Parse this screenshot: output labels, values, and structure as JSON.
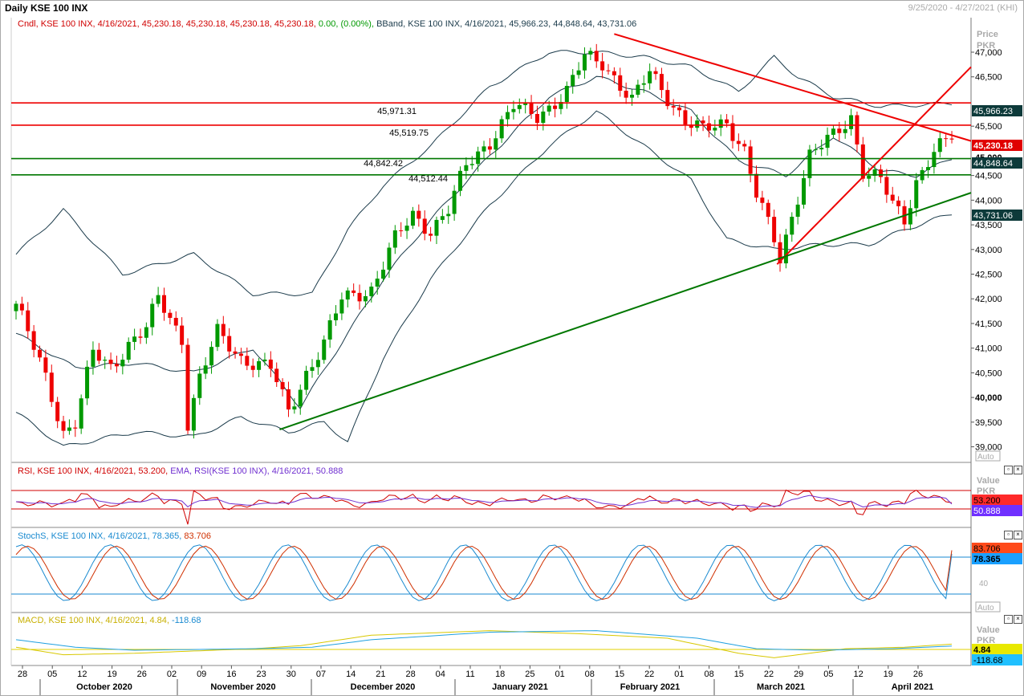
{
  "window": {
    "title": "Daily KSE 100 INX",
    "range": "9/25/2020 - 4/27/2021 (KHI)"
  },
  "price_panel": {
    "legend_cndl": "Cndl, KSE 100 INX, 4/16/2021, 45,230.18, 45,230.18, 45,230.18, 45,230.18,",
    "legend_chg": "0.00, (0.00%),",
    "legend_bband": "BBand, KSE 100 INX, 4/16/2021, 45,966.23, 44,848.64, 43,731.06",
    "axis_title": "Price",
    "axis_unit": "PKR",
    "auto_label": "Auto",
    "tag_last": "45,230.18",
    "tag_upper": "45,966.23",
    "tag_mid": "44,848.64",
    "tag_lower": "43,731.06",
    "tag_45000": "45,000",
    "lvl1": "45,971.31",
    "lvl2": "45,519.75",
    "lvl3": "44,842.42",
    "lvl4": "44,512.44",
    "colors": {
      "up": "#009900",
      "down": "#ee0000",
      "resist": "#ee0000",
      "support": "#007700",
      "band": "#1a3a4a"
    }
  },
  "rsi_panel": {
    "legend_rsi": "RSI, KSE 100 INX, 4/16/2021, 53.200,",
    "legend_ema": "EMA, RSI(KSE 100 INX), 4/16/2021, 50.888",
    "axis_title": "Value",
    "axis_unit": "PKR",
    "tag_rsi": "53.200",
    "tag_ema": "50.888"
  },
  "stoch_panel": {
    "legend_k": "StochS, KSE 100 INX, 4/16/2021, 78.365,",
    "legend_d": "83.706",
    "tick_40": "40",
    "tag_d": "83.706",
    "tag_k": "78.365",
    "auto_label": "Auto"
  },
  "macd_panel": {
    "legend_macd": "MACD, KSE 100 INX, 4/16/2021, 4.84,",
    "legend_signal": "-118.68",
    "axis_title": "Value",
    "axis_unit": "PKR",
    "tag_macd": "4.84",
    "tag_signal": "-118.68"
  },
  "chart_data": {
    "type": "candlestick",
    "ylim": [
      38700,
      47700
    ],
    "yticks": [
      "47,000",
      "46,500",
      "45,500",
      "44,500",
      "44,000",
      "43,500",
      "43,000",
      "42,500",
      "42,000",
      "41,500",
      "41,000",
      "40,500",
      "40,000",
      "39,500",
      "39,000"
    ],
    "xticks": [
      "28",
      "05",
      "12",
      "19",
      "26",
      "02",
      "09",
      "16",
      "23",
      "30",
      "07",
      "14",
      "21",
      "28",
      "04",
      "11",
      "18",
      "25",
      "01",
      "08",
      "15",
      "22",
      "01",
      "08",
      "15",
      "22",
      "29",
      "05",
      "12",
      "19",
      "26"
    ],
    "months": [
      "October 2020",
      "November 2020",
      "December 2020",
      "January 2021",
      "February 2021",
      "March 2021",
      "April 2021"
    ],
    "horizontal_levels": [
      45971.31,
      45519.75,
      44842.42,
      44512.44
    ],
    "anchors": [
      [
        0,
        41900
      ],
      [
        5,
        40400
      ],
      [
        8,
        39300
      ],
      [
        10,
        39500
      ],
      [
        13,
        40900
      ],
      [
        16,
        40600
      ],
      [
        19,
        41100
      ],
      [
        22,
        41400
      ],
      [
        24,
        42000
      ],
      [
        28,
        41200
      ],
      [
        29,
        39500
      ],
      [
        31,
        40400
      ],
      [
        34,
        41300
      ],
      [
        38,
        40800
      ],
      [
        43,
        40600
      ],
      [
        46,
        39700
      ],
      [
        49,
        40500
      ],
      [
        52,
        41100
      ],
      [
        55,
        42000
      ],
      [
        60,
        42200
      ],
      [
        64,
        43200
      ],
      [
        67,
        43700
      ],
      [
        70,
        43400
      ],
      [
        73,
        43800
      ],
      [
        76,
        44700
      ],
      [
        80,
        45200
      ],
      [
        84,
        45900
      ],
      [
        88,
        45700
      ],
      [
        93,
        46200
      ],
      [
        96,
        46900
      ],
      [
        99,
        46800
      ],
      [
        101,
        46500
      ],
      [
        104,
        46000
      ],
      [
        107,
        46600
      ],
      [
        110,
        46100
      ],
      [
        113,
        45600
      ],
      [
        116,
        45400
      ],
      [
        120,
        45600
      ],
      [
        123,
        45000
      ],
      [
        125,
        44100
      ],
      [
        128,
        43200
      ],
      [
        129,
        42800
      ],
      [
        131,
        43700
      ],
      [
        134,
        44900
      ],
      [
        138,
        45300
      ],
      [
        141,
        45700
      ],
      [
        143,
        44600
      ],
      [
        146,
        44400
      ],
      [
        148,
        43900
      ],
      [
        150,
        43600
      ],
      [
        152,
        44400
      ],
      [
        155,
        45000
      ],
      [
        158,
        45230
      ]
    ],
    "bband_upper_anchors": [
      [
        0,
        42900
      ],
      [
        8,
        43800
      ],
      [
        18,
        42500
      ],
      [
        30,
        42900
      ],
      [
        40,
        42100
      ],
      [
        50,
        42100
      ],
      [
        56,
        43400
      ],
      [
        62,
        44300
      ],
      [
        70,
        45100
      ],
      [
        80,
        46300
      ],
      [
        90,
        47000
      ],
      [
        98,
        47000
      ],
      [
        106,
        46900
      ],
      [
        114,
        46700
      ],
      [
        122,
        46200
      ],
      [
        128,
        46900
      ],
      [
        132,
        46500
      ],
      [
        138,
        46100
      ],
      [
        146,
        45900
      ],
      [
        158,
        45960
      ]
    ],
    "bband_mid_anchors": [
      [
        0,
        41300
      ],
      [
        10,
        40600
      ],
      [
        20,
        40700
      ],
      [
        30,
        40500
      ],
      [
        40,
        41000
      ],
      [
        48,
        39800
      ],
      [
        56,
        41300
      ],
      [
        62,
        42400
      ],
      [
        70,
        43600
      ],
      [
        80,
        44900
      ],
      [
        90,
        46100
      ],
      [
        98,
        46500
      ],
      [
        106,
        46200
      ],
      [
        114,
        45800
      ],
      [
        122,
        44800
      ],
      [
        130,
        44500
      ],
      [
        138,
        45300
      ],
      [
        146,
        44600
      ],
      [
        152,
        44500
      ],
      [
        158,
        44850
      ]
    ],
    "bband_lower_anchors": [
      [
        0,
        39700
      ],
      [
        8,
        39000
      ],
      [
        20,
        39300
      ],
      [
        30,
        39200
      ],
      [
        38,
        39600
      ],
      [
        46,
        39300
      ],
      [
        52,
        39500
      ],
      [
        56,
        39100
      ],
      [
        62,
        40800
      ],
      [
        70,
        42400
      ],
      [
        80,
        43900
      ],
      [
        90,
        45100
      ],
      [
        98,
        45800
      ],
      [
        106,
        45100
      ],
      [
        114,
        44400
      ],
      [
        120,
        43200
      ],
      [
        128,
        43000
      ],
      [
        136,
        43100
      ],
      [
        144,
        43100
      ],
      [
        150,
        43400
      ],
      [
        158,
        43730
      ]
    ],
    "rsi_last": 53.2,
    "rsi_ema_last": 50.888,
    "stoch_k_last": 78.365,
    "stoch_d_last": 83.706,
    "macd_last": 4.84,
    "signal_last": -118.68
  }
}
